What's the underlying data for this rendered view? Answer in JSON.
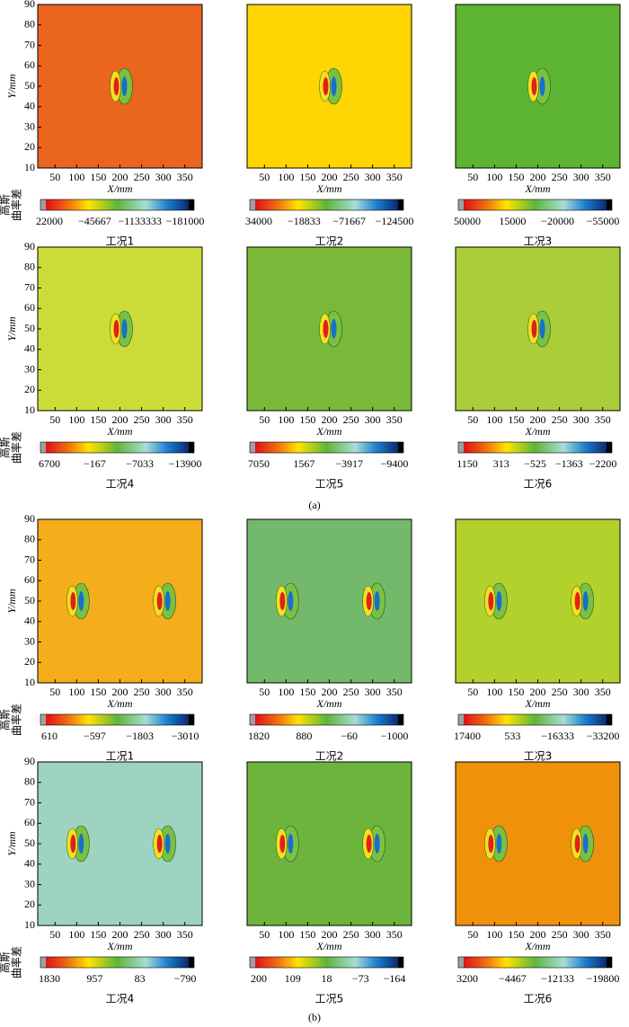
{
  "figure": {
    "colorbar_title": [
      "高斯",
      "曲率差"
    ],
    "subfigure_labels": [
      "(a)",
      "(b)"
    ]
  },
  "chart_data": [
    {
      "type": "contour",
      "color": "#ea651e",
      "xlabel": "X/mm",
      "ylabel": "Y/mm",
      "xlim": [
        10,
        390
      ],
      "ylim": [
        10,
        90
      ],
      "xticks": [
        50,
        100,
        150,
        200,
        250,
        300,
        350
      ],
      "yticks": [
        10,
        20,
        30,
        40,
        50,
        60,
        70,
        80,
        90
      ],
      "colorbar_ticks": [
        22000,
        {
          "value": -45667,
          "label": "−45667"
        },
        {
          "value": -1133333,
          "label": "−1133333"
        },
        {
          "value": -181000,
          "label": "−181000"
        }
      ],
      "caption": "工况1"
    },
    {
      "type": "contour",
      "color": "#ffd503",
      "xlabel": "X/mm",
      "xlim": [
        10,
        390
      ],
      "ylim": [
        10,
        90
      ],
      "xticks": [
        50,
        100,
        150,
        200,
        250,
        300,
        350
      ],
      "colorbar_ticks": [
        34000,
        {
          "value": -18833,
          "label": "−18833"
        },
        {
          "value": -71667,
          "label": "−71667"
        },
        {
          "value": -124500,
          "label": "−124500"
        }
      ],
      "caption": "工况2"
    },
    {
      "type": "contour",
      "color": "#5cb432",
      "xlabel": "X/mm",
      "xlim": [
        10,
        390
      ],
      "ylim": [
        10,
        90
      ],
      "xticks": [
        50,
        100,
        150,
        200,
        250,
        300,
        350
      ],
      "colorbar_ticks": [
        50000,
        15000,
        {
          "value": -20000,
          "label": "−20000"
        },
        {
          "value": -55000,
          "label": "−55000"
        }
      ],
      "caption": "工况3"
    },
    {
      "type": "contour",
      "color": "#cbdc3a",
      "xlabel": "X/mm",
      "ylabel": "Y/mm",
      "xlim": [
        10,
        390
      ],
      "ylim": [
        10,
        90
      ],
      "xticks": [
        50,
        100,
        150,
        200,
        250,
        300,
        350
      ],
      "yticks": [
        10,
        20,
        30,
        40,
        50,
        60,
        70,
        80,
        90
      ],
      "colorbar_ticks": [
        6700,
        {
          "value": -167,
          "label": "−167"
        },
        {
          "value": -7033,
          "label": "−7033"
        },
        {
          "value": -13900,
          "label": "−13900"
        }
      ],
      "caption": "工况4"
    },
    {
      "type": "contour",
      "color": "#7ab83a",
      "xlabel": "X/mm",
      "xlim": [
        10,
        390
      ],
      "ylim": [
        10,
        90
      ],
      "xticks": [
        50,
        100,
        150,
        200,
        250,
        300,
        350
      ],
      "colorbar_ticks": [
        7050,
        1567,
        {
          "value": -3917,
          "label": "−3917"
        },
        {
          "value": -9400,
          "label": "−9400"
        }
      ],
      "caption": "工况5"
    },
    {
      "type": "contour",
      "color": "#aacd3a",
      "xlabel": "X/mm",
      "xlim": [
        10,
        390
      ],
      "ylim": [
        10,
        90
      ],
      "xticks": [
        50,
        100,
        150,
        200,
        250,
        300,
        350
      ],
      "colorbar_ticks": [
        1150,
        313,
        {
          "value": -525,
          "label": "−525"
        },
        {
          "value": -1363,
          "label": "−1363"
        },
        {
          "value": -2200,
          "label": "−2200"
        }
      ],
      "caption": "工况6"
    },
    {
      "type": "contour",
      "color": "#f6ad1b",
      "xlabel": "X/mm",
      "ylabel": "Y/mm",
      "xlim": [
        10,
        390
      ],
      "ylim": [
        10,
        90
      ],
      "xticks": [
        50,
        100,
        150,
        200,
        250,
        300,
        350
      ],
      "yticks": [
        10,
        20,
        30,
        40,
        50,
        60,
        70,
        80,
        90
      ],
      "colorbar_ticks": [
        610,
        {
          "value": -597,
          "label": "−597"
        },
        {
          "value": -1803,
          "label": "−1803"
        },
        {
          "value": -3010,
          "label": "−3010"
        }
      ],
      "caption": "工况1"
    },
    {
      "type": "contour",
      "color": "#74b96b",
      "xlabel": "X/mm",
      "xlim": [
        10,
        390
      ],
      "ylim": [
        10,
        90
      ],
      "xticks": [
        50,
        100,
        150,
        200,
        250,
        300,
        350
      ],
      "colorbar_ticks": [
        1820,
        880,
        {
          "value": -60,
          "label": "−60"
        },
        {
          "value": -1000,
          "label": "−1000"
        }
      ],
      "caption": "工况2"
    },
    {
      "type": "contour",
      "color": "#b3d12c",
      "xlabel": "X/mm",
      "xlim": [
        10,
        390
      ],
      "ylim": [
        10,
        90
      ],
      "xticks": [
        50,
        100,
        150,
        200,
        250,
        300,
        350
      ],
      "colorbar_ticks": [
        17400,
        533,
        {
          "value": -16333,
          "label": "−16333"
        },
        {
          "value": -33200,
          "label": "−33200"
        }
      ],
      "caption": "工况3"
    },
    {
      "type": "contour",
      "color": "#9ed3c1",
      "xlabel": "X/mm",
      "ylabel": "Y/mm",
      "xlim": [
        10,
        390
      ],
      "ylim": [
        10,
        90
      ],
      "xticks": [
        50,
        100,
        150,
        200,
        250,
        300,
        350
      ],
      "yticks": [
        10,
        20,
        30,
        40,
        50,
        60,
        70,
        80,
        90
      ],
      "colorbar_ticks": [
        1830,
        957,
        83,
        {
          "value": -790,
          "label": "−790"
        }
      ],
      "caption": "工况4"
    },
    {
      "type": "contour",
      "color": "#6db43d",
      "xlabel": "X/mm",
      "xlim": [
        10,
        390
      ],
      "ylim": [
        10,
        90
      ],
      "xticks": [
        50,
        100,
        150,
        200,
        250,
        300,
        350
      ],
      "colorbar_ticks": [
        200,
        109,
        18,
        {
          "value": -73,
          "label": "−73"
        },
        {
          "value": -164,
          "label": "−164"
        }
      ],
      "caption": "工况5"
    },
    {
      "type": "contour",
      "color": "#f0910b",
      "xlabel": "X/mm",
      "xlim": [
        10,
        390
      ],
      "ylim": [
        10,
        90
      ],
      "xticks": [
        50,
        100,
        150,
        200,
        250,
        300,
        350
      ],
      "colorbar_ticks": [
        3200,
        {
          "value": -4467,
          "label": "−4467"
        },
        {
          "value": -12133,
          "label": "−12133"
        },
        {
          "value": -19800,
          "label": "−19800"
        }
      ],
      "caption": "工况6"
    }
  ]
}
